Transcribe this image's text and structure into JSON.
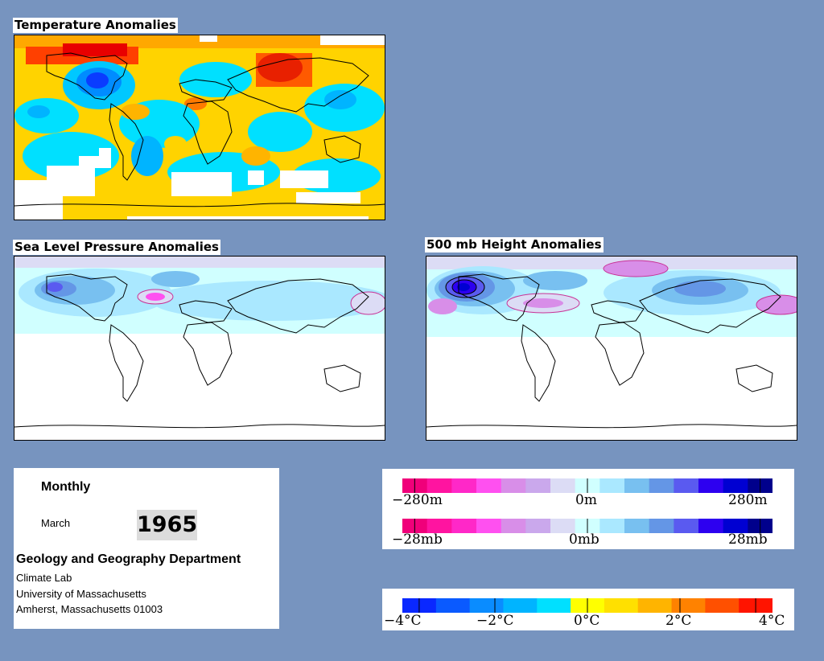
{
  "panels": {
    "temperature": {
      "title": "Temperature Anomalies"
    },
    "slp": {
      "title": "Sea Level Pressure Anomalies"
    },
    "height": {
      "title": "500 mb Height Anomalies"
    }
  },
  "info": {
    "period": "Monthly",
    "month": "March",
    "year": "1965",
    "department": "Geology and Geography Department",
    "lab": "Climate Lab",
    "university": "University of Massachusetts",
    "address": "Amherst, Massachusetts 01003"
  },
  "legend_height_pressure": {
    "colors": [
      "#f0007a",
      "#ff14a0",
      "#ff28c8",
      "#ff50f0",
      "#d88ee8",
      "#caa8ec",
      "#dcdcf5",
      "#d0ffff",
      "#aae8ff",
      "#78c0f0",
      "#6496e6",
      "#5a5af0",
      "#2d00f0",
      "#0000d2",
      "#00008c"
    ],
    "height_labels": [
      "−280m",
      "0m",
      "280m"
    ],
    "pressure_labels": [
      "−28mb",
      "0mb",
      "28mb"
    ]
  },
  "legend_temperature": {
    "colors": [
      "#0a28ff",
      "#0a5aff",
      "#0a8cff",
      "#00b4ff",
      "#00e0ff",
      "#ffff00",
      "#ffe000",
      "#ffb400",
      "#ff8200",
      "#ff5000",
      "#ff1400"
    ],
    "labels": [
      "−4°C",
      "−2°C",
      "0°C",
      "2°C",
      "4°C"
    ]
  }
}
